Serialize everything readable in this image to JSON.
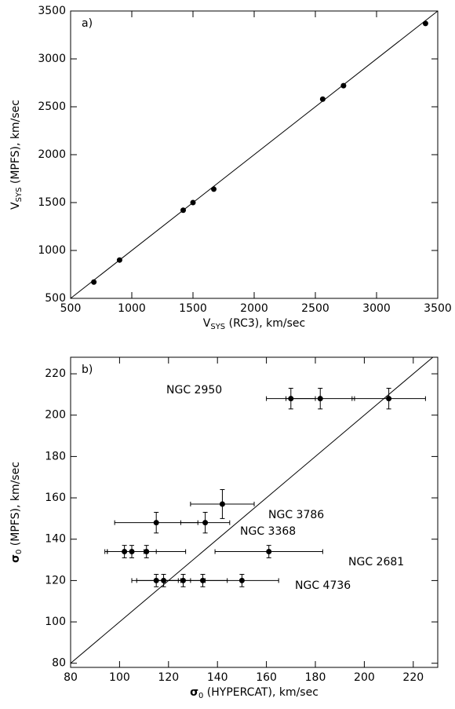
{
  "chart_data": [
    {
      "type": "scatter",
      "panel": "a)",
      "xlabel": {
        "main": "V",
        "sub": "SYS",
        "rest": " (RC3), km/sec"
      },
      "ylabel": {
        "main": "V",
        "sub": "SYS",
        "rest": " (MPFS), km/sec"
      },
      "xlim": [
        500,
        3500
      ],
      "ylim": [
        500,
        3500
      ],
      "xticks": [
        500,
        1000,
        1500,
        2000,
        2500,
        3000,
        3500
      ],
      "yticks": [
        500,
        1000,
        1500,
        2000,
        2500,
        3000,
        3500
      ],
      "x": [
        690,
        900,
        1420,
        1500,
        1670,
        2560,
        2730,
        3400
      ],
      "y": [
        670,
        900,
        1420,
        1500,
        1640,
        2580,
        2720,
        3370
      ]
    },
    {
      "type": "errorbar",
      "panel": "b)",
      "xlabel": {
        "main": "σ",
        "sub": "0",
        "rest": " (HYPERCAT), km/sec"
      },
      "ylabel": {
        "main": "σ",
        "sub": "0",
        "rest": " (MPFS), km/sec"
      },
      "xlim": [
        80,
        230
      ],
      "ylim": [
        78,
        228
      ],
      "xticks": [
        80,
        100,
        120,
        140,
        160,
        180,
        200,
        220
      ],
      "yticks": [
        80,
        100,
        120,
        140,
        160,
        180,
        200,
        220
      ],
      "x": [
        170,
        182,
        210,
        142,
        115,
        135,
        102,
        105,
        111,
        161,
        115,
        118,
        126,
        134,
        150
      ],
      "y": [
        208,
        208,
        208,
        157,
        148,
        148,
        134,
        134,
        134,
        134,
        120,
        120,
        120,
        120,
        120
      ],
      "xerr": [
        10,
        14,
        15,
        13,
        17,
        10,
        8,
        10,
        16,
        22,
        10,
        11,
        8,
        10,
        15
      ],
      "yerr": [
        5,
        5,
        5,
        7,
        5,
        5,
        3,
        3,
        3,
        3,
        3,
        3,
        3,
        3,
        3
      ],
      "annotations": [
        "NGC 2950",
        "NGC 3786",
        "NGC 3368",
        "NGC 2681",
        "NGC 4736"
      ]
    }
  ]
}
